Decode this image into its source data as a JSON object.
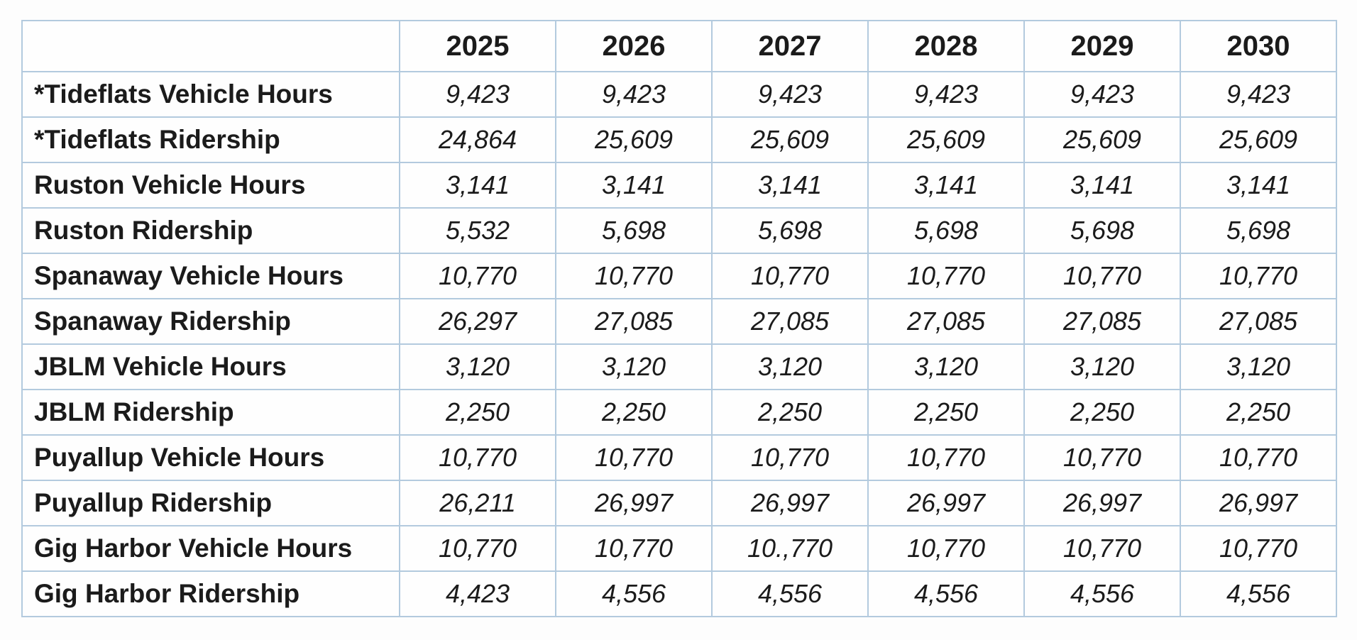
{
  "table": {
    "columns": [
      "",
      "2025",
      "2026",
      "2027",
      "2028",
      "2029",
      "2030"
    ],
    "rows": [
      {
        "label": "*Tideflats Vehicle Hours",
        "values": [
          "9,423",
          "9,423",
          "9,423",
          "9,423",
          "9,423",
          "9,423"
        ]
      },
      {
        "label": "*Tideflats Ridership",
        "values": [
          "24,864",
          "25,609",
          "25,609",
          "25,609",
          "25,609",
          "25,609"
        ]
      },
      {
        "label": "Ruston Vehicle Hours",
        "values": [
          "3,141",
          "3,141",
          "3,141",
          "3,141",
          "3,141",
          "3,141"
        ]
      },
      {
        "label": "Ruston Ridership",
        "values": [
          "5,532",
          "5,698",
          "5,698",
          "5,698",
          "5,698",
          "5,698"
        ]
      },
      {
        "label": "Spanaway Vehicle Hours",
        "values": [
          "10,770",
          "10,770",
          "10,770",
          "10,770",
          "10,770",
          "10,770"
        ]
      },
      {
        "label": "Spanaway Ridership",
        "values": [
          "26,297",
          "27,085",
          "27,085",
          "27,085",
          "27,085",
          "27,085"
        ]
      },
      {
        "label": "JBLM Vehicle Hours",
        "values": [
          "3,120",
          "3,120",
          "3,120",
          "3,120",
          "3,120",
          "3,120"
        ]
      },
      {
        "label": "JBLM Ridership",
        "values": [
          "2,250",
          "2,250",
          "2,250",
          "2,250",
          "2,250",
          "2,250"
        ]
      },
      {
        "label": "Puyallup Vehicle Hours",
        "values": [
          "10,770",
          "10,770",
          "10,770",
          "10,770",
          "10,770",
          "10,770"
        ]
      },
      {
        "label": "Puyallup Ridership",
        "values": [
          "26,211",
          "26,997",
          "26,997",
          "26,997",
          "26,997",
          "26,997"
        ]
      },
      {
        "label": "Gig Harbor Vehicle Hours",
        "values": [
          "10,770",
          "10,770",
          "10.,770",
          "10,770",
          "10,770",
          "10,770"
        ]
      },
      {
        "label": "Gig Harbor Ridership",
        "values": [
          "4,423",
          "4,556",
          "4,556",
          "4,556",
          "4,556",
          "4,556"
        ]
      }
    ]
  },
  "chart_data": {
    "type": "table",
    "columns": [
      "",
      "2025",
      "2026",
      "2027",
      "2028",
      "2029",
      "2030"
    ],
    "rows": [
      [
        "*Tideflats Vehicle Hours",
        "9,423",
        "9,423",
        "9,423",
        "9,423",
        "9,423",
        "9,423"
      ],
      [
        "*Tideflats Ridership",
        "24,864",
        "25,609",
        "25,609",
        "25,609",
        "25,609",
        "25,609"
      ],
      [
        "Ruston Vehicle Hours",
        "3,141",
        "3,141",
        "3,141",
        "3,141",
        "3,141",
        "3,141"
      ],
      [
        "Ruston Ridership",
        "5,532",
        "5,698",
        "5,698",
        "5,698",
        "5,698",
        "5,698"
      ],
      [
        "Spanaway Vehicle Hours",
        "10,770",
        "10,770",
        "10,770",
        "10,770",
        "10,770",
        "10,770"
      ],
      [
        "Spanaway Ridership",
        "26,297",
        "27,085",
        "27,085",
        "27,085",
        "27,085",
        "27,085"
      ],
      [
        "JBLM Vehicle Hours",
        "3,120",
        "3,120",
        "3,120",
        "3,120",
        "3,120",
        "3,120"
      ],
      [
        "JBLM Ridership",
        "2,250",
        "2,250",
        "2,250",
        "2,250",
        "2,250",
        "2,250"
      ],
      [
        "Puyallup Vehicle Hours",
        "10,770",
        "10,770",
        "10,770",
        "10,770",
        "10,770",
        "10,770"
      ],
      [
        "Puyallup Ridership",
        "26,211",
        "26,997",
        "26,997",
        "26,997",
        "26,997",
        "26,997"
      ],
      [
        "Gig Harbor Vehicle Hours",
        "10,770",
        "10,770",
        "10.,770",
        "10,770",
        "10,770",
        "10,770"
      ],
      [
        "Gig Harbor Ridership",
        "4,423",
        "4,556",
        "4,556",
        "4,556",
        "4,556",
        "4,556"
      ]
    ]
  },
  "colors": {
    "cell_border": "#b3cade",
    "header_rule": "#9db7d5",
    "text": "#1b1b1b",
    "background": "#fdfdfd"
  }
}
